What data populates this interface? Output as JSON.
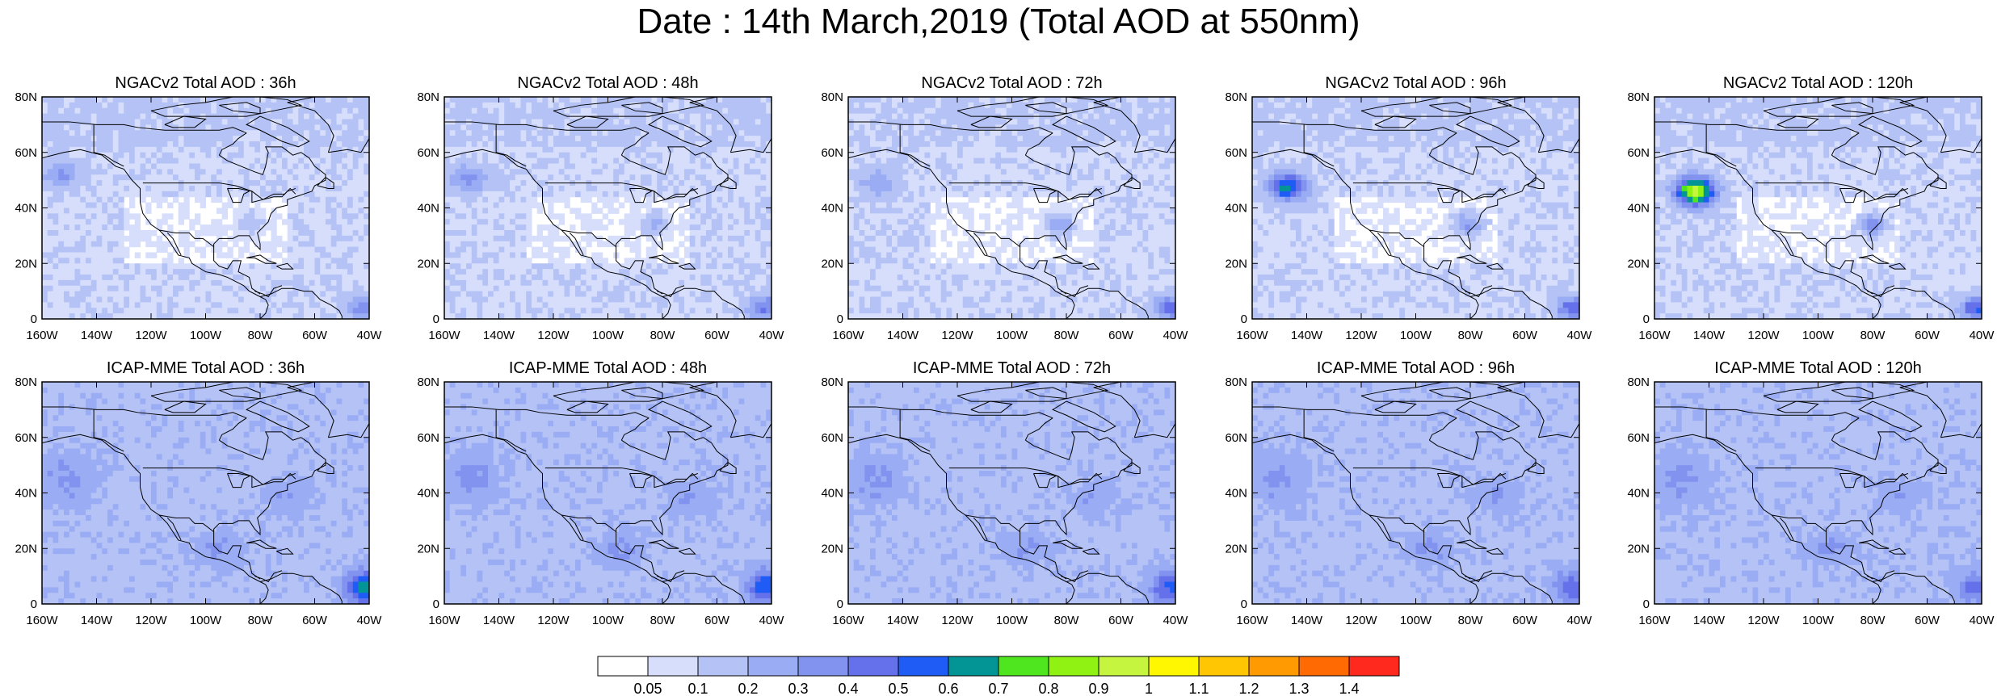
{
  "title": "Date : 14th March,2019 (Total AOD at 550nm)",
  "lat_labels": [
    "80N",
    "60N",
    "40N",
    "20N",
    "0"
  ],
  "lon_labels": [
    "160W",
    "140W",
    "120W",
    "100W",
    "80W",
    "60W",
    "40W"
  ],
  "panels": [
    {
      "title": "NGACv2 Total AOD : 36h",
      "model": "NGACv2",
      "forecast_hour": "36h"
    },
    {
      "title": "NGACv2 Total AOD : 48h",
      "model": "NGACv2",
      "forecast_hour": "48h"
    },
    {
      "title": "NGACv2 Total AOD : 72h",
      "model": "NGACv2",
      "forecast_hour": "72h"
    },
    {
      "title": "NGACv2 Total AOD : 96h",
      "model": "NGACv2",
      "forecast_hour": "96h"
    },
    {
      "title": "NGACv2 Total AOD : 120h",
      "model": "NGACv2",
      "forecast_hour": "120h"
    },
    {
      "title": "ICAP-MME Total AOD : 36h",
      "model": "ICAP-MME",
      "forecast_hour": "36h"
    },
    {
      "title": "ICAP-MME Total AOD : 48h",
      "model": "ICAP-MME",
      "forecast_hour": "48h"
    },
    {
      "title": "ICAP-MME Total AOD : 72h",
      "model": "ICAP-MME",
      "forecast_hour": "72h"
    },
    {
      "title": "ICAP-MME Total AOD : 96h",
      "model": "ICAP-MME",
      "forecast_hour": "96h"
    },
    {
      "title": "ICAP-MME Total AOD : 120h",
      "model": "ICAP-MME",
      "forecast_hour": "120h"
    }
  ],
  "colorbar": {
    "labels": [
      "0.05",
      "0.1",
      "0.2",
      "0.3",
      "0.4",
      "0.5",
      "0.6",
      "0.7",
      "0.8",
      "0.9",
      "1",
      "1.1",
      "1.2",
      "1.3",
      "1.4"
    ],
    "colors": [
      "#ffffff",
      "#d6defc",
      "#b4c2f6",
      "#9aacf3",
      "#8193ee",
      "#6471ea",
      "#1f5cf5",
      "#039496",
      "#4fe61f",
      "#8ff213",
      "#c6f53f",
      "#fff602",
      "#ffc703",
      "#ff9a02",
      "#ff6b02",
      "#ff2a1d"
    ]
  }
}
